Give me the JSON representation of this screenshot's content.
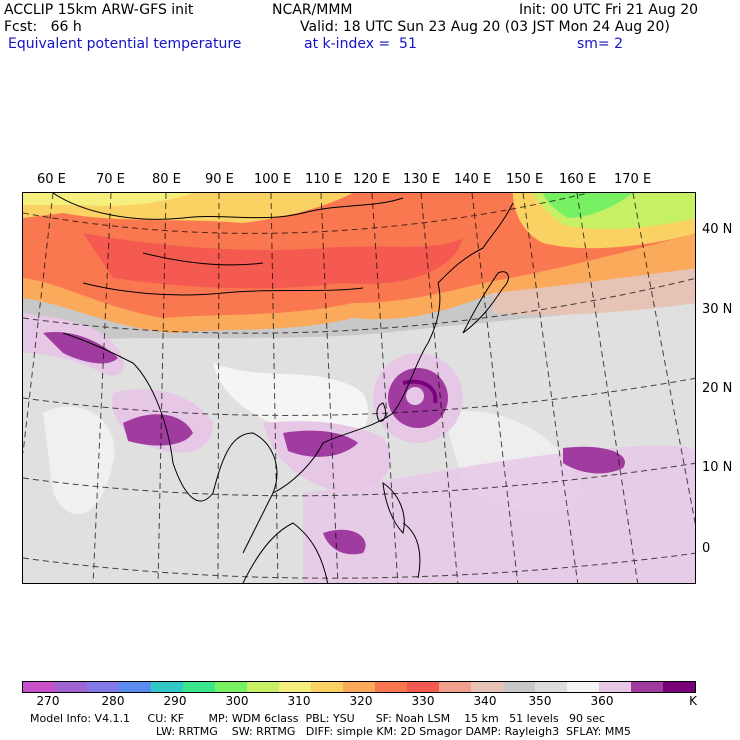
{
  "header": {
    "line1_left": "ACCLIP 15km ARW-GFS init",
    "line1_center": "NCAR/MMM",
    "line1_right": "Init: 00 UTC Fri 21 Aug 20",
    "line2_left": "Fcst:   66 h",
    "line2_right": "Valid: 18 UTC Sun 23 Aug 20 (03 JST Mon 24 Aug 20)",
    "line3_field": "Equivalent potential temperature",
    "line3_level": "at k-index =  51",
    "line3_smooth": "sm= 2"
  },
  "map": {
    "lon_labels": [
      "60 E",
      "70 E",
      "80 E",
      "90 E",
      "100 E",
      "110 E",
      "120 E",
      "130 E",
      "140 E",
      "150 E",
      "160 E",
      "170 E"
    ],
    "lat_labels": [
      "40 N",
      "30 N",
      "20 N",
      "10 N",
      "0"
    ]
  },
  "colorbar": {
    "colors": [
      "#c850c8",
      "#a064d2",
      "#8278e6",
      "#5a8cf0",
      "#32c8c8",
      "#3ce68c",
      "#78f064",
      "#c8f064",
      "#f5f07d",
      "#fad264",
      "#faaa5a",
      "#fa7850",
      "#f55a50",
      "#f0a08c",
      "#e6c3b4",
      "#c8c8c8",
      "#dcdcdc",
      "#f5f5f5",
      "#e6c8e6",
      "#a03ca0",
      "#780078"
    ],
    "ticks": [
      "270",
      "280",
      "290",
      "300",
      "310",
      "320",
      "330",
      "340",
      "350",
      "360",
      "K"
    ]
  },
  "footer": {
    "line1": "Model Info: V4.1.1     CU: KF       MP: WDM 6class  PBL: YSU      SF: Noah LSM    15 km   51 levels   90 sec",
    "line2": "LW: RRTMG    SW: RRTMG   DIFF: simple KM: 2D Smagor DAMP: Rayleigh3  SFLAY: MM5"
  }
}
